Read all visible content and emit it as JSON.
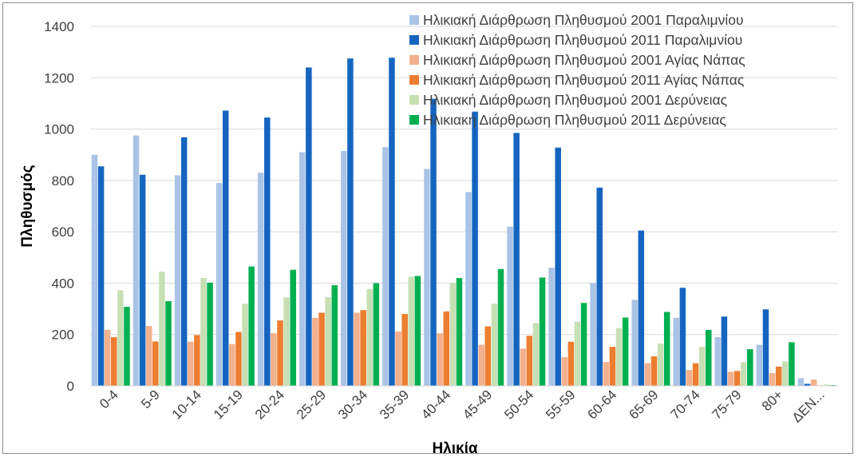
{
  "chart_data": {
    "type": "bar",
    "title": "",
    "xlabel": "Ηλικία",
    "ylabel": "Πληθυσμός",
    "ylim": [
      0,
      1400
    ],
    "yticks": [
      0,
      200,
      400,
      600,
      800,
      1000,
      1200,
      1400
    ],
    "grid": true,
    "legend_position": "top-right",
    "categories": [
      "0-4",
      "5-9",
      "10-14",
      "15-19",
      "20-24",
      "25-29",
      "30-34",
      "35-39",
      "40-44",
      "45-49",
      "50-54",
      "55-59",
      "60-64",
      "65-69",
      "70-74",
      "75-79",
      "80+",
      "ΔΕΝ..."
    ],
    "series": [
      {
        "name": "Ηλικιακή Διάρθρωση Πληθυσμού 2001 Παραλιμνίου",
        "color": "#a9c4e6",
        "values": [
          900,
          975,
          820,
          790,
          830,
          910,
          915,
          930,
          845,
          755,
          620,
          460,
          400,
          335,
          265,
          190,
          160,
          30
        ]
      },
      {
        "name": "Ηλικιακή Διάρθρωση Πληθυσμού 2011 Παραλιμνίου",
        "color": "#1565c0",
        "values": [
          855,
          822,
          968,
          1072,
          1045,
          1240,
          1275,
          1278,
          1118,
          1068,
          985,
          928,
          772,
          605,
          382,
          270,
          298,
          8
        ]
      },
      {
        "name": "Ηλικιακή Διάρθρωση Πληθυσμού 2001 Αγίας Νάπας",
        "color": "#f2b08c",
        "values": [
          218,
          233,
          172,
          163,
          205,
          265,
          285,
          212,
          205,
          160,
          145,
          112,
          93,
          88,
          62,
          55,
          50,
          25
        ]
      },
      {
        "name": "Ηλικιακή Διάρθρωση Πληθυσμού 2011 Αγίας Νάπας",
        "color": "#ed7d31",
        "values": [
          190,
          173,
          198,
          210,
          255,
          285,
          295,
          280,
          290,
          232,
          195,
          172,
          152,
          115,
          88,
          58,
          75,
          2
        ]
      },
      {
        "name": "Ηλικιακή Διάρθρωση Πληθυσμού 2001 Δερύνειας",
        "color": "#c6e0b4",
        "values": [
          372,
          445,
          420,
          320,
          345,
          345,
          377,
          425,
          402,
          320,
          245,
          250,
          225,
          165,
          152,
          92,
          95,
          5
        ]
      },
      {
        "name": "Ηλικιακή Διάρθρωση Πληθυσμού 2011 Δερύνειας",
        "color": "#00b050",
        "values": [
          308,
          330,
          402,
          465,
          452,
          392,
          400,
          428,
          420,
          455,
          422,
          323,
          266,
          288,
          218,
          143,
          170,
          3
        ]
      }
    ]
  }
}
